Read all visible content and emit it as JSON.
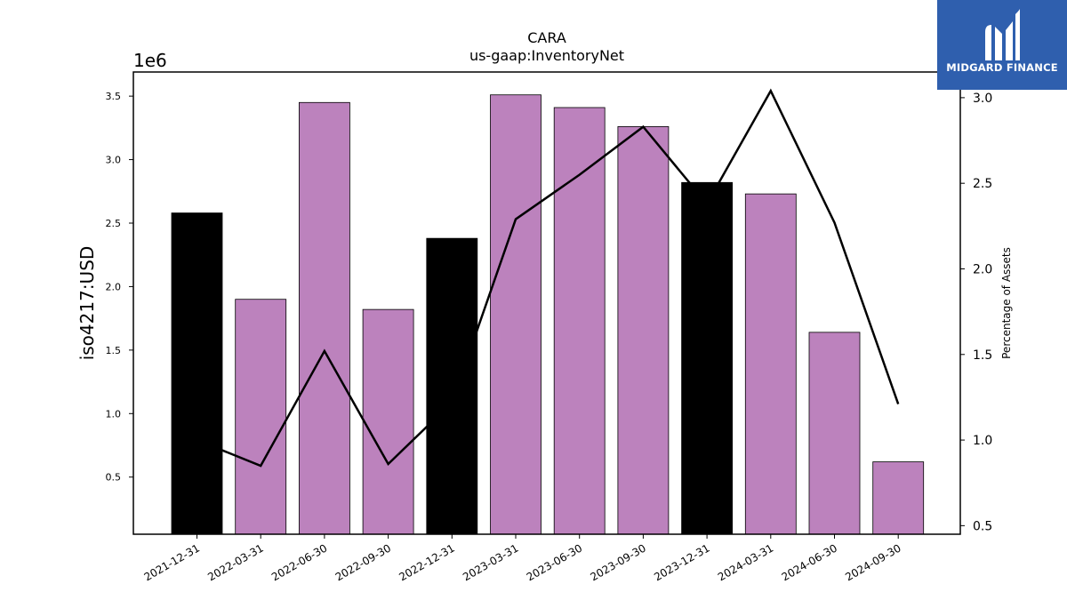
{
  "brand": {
    "name": "MIDGARD FINANCE",
    "logo_icon": "midgard-m-logo-icon",
    "bg_color": "#2f5fae"
  },
  "chart_data": {
    "type": "bar",
    "title": "CARA",
    "subtitle": "us-gaap:InventoryNet",
    "categories": [
      "2021-12-31",
      "2022-03-31",
      "2022-06-30",
      "2022-09-30",
      "2022-12-31",
      "2023-03-31",
      "2023-06-30",
      "2023-09-30",
      "2023-12-31",
      "2024-03-31",
      "2024-06-30",
      "2024-09-30"
    ],
    "series": [
      {
        "type": "bar",
        "values": [
          2580000,
          1900000,
          3450000,
          1820000,
          2380000,
          3510000,
          3410000,
          3260000,
          2820000,
          2730000,
          1640000,
          620000
        ]
      },
      {
        "type": "line",
        "axis": "right",
        "values": [
          1.0,
          0.85,
          1.52,
          0.86,
          1.22,
          2.29,
          2.55,
          2.83,
          2.38,
          3.04,
          2.27,
          1.21
        ]
      }
    ],
    "bar_colors": [
      "#000000",
      "#bc82bd",
      "#bc82bd",
      "#bc82bd",
      "#000000",
      "#bc82bd",
      "#bc82bd",
      "#bc82bd",
      "#000000",
      "#bc82bd",
      "#bc82bd",
      "#bc82bd"
    ],
    "line_color": "#000000",
    "ylabel": "iso4217:USD",
    "y_exponent_label": "1e6",
    "y2label": "Percentage of Assets",
    "ylim": [
      50000,
      3690000
    ],
    "yticks": [
      500000,
      1000000,
      1500000,
      2000000,
      2500000,
      3000000,
      3500000
    ],
    "ytick_labels": [
      "0.5",
      "1.0",
      "1.5",
      "2.0",
      "2.5",
      "3.0",
      "3.5"
    ],
    "y2lim": [
      0.45,
      3.15
    ],
    "y2ticks": [
      0.5,
      1.0,
      1.5,
      2.0,
      2.5,
      3.0
    ],
    "y2tick_labels": [
      "0.5",
      "1.0",
      "1.5",
      "2.0",
      "2.5",
      "3.0"
    ]
  }
}
